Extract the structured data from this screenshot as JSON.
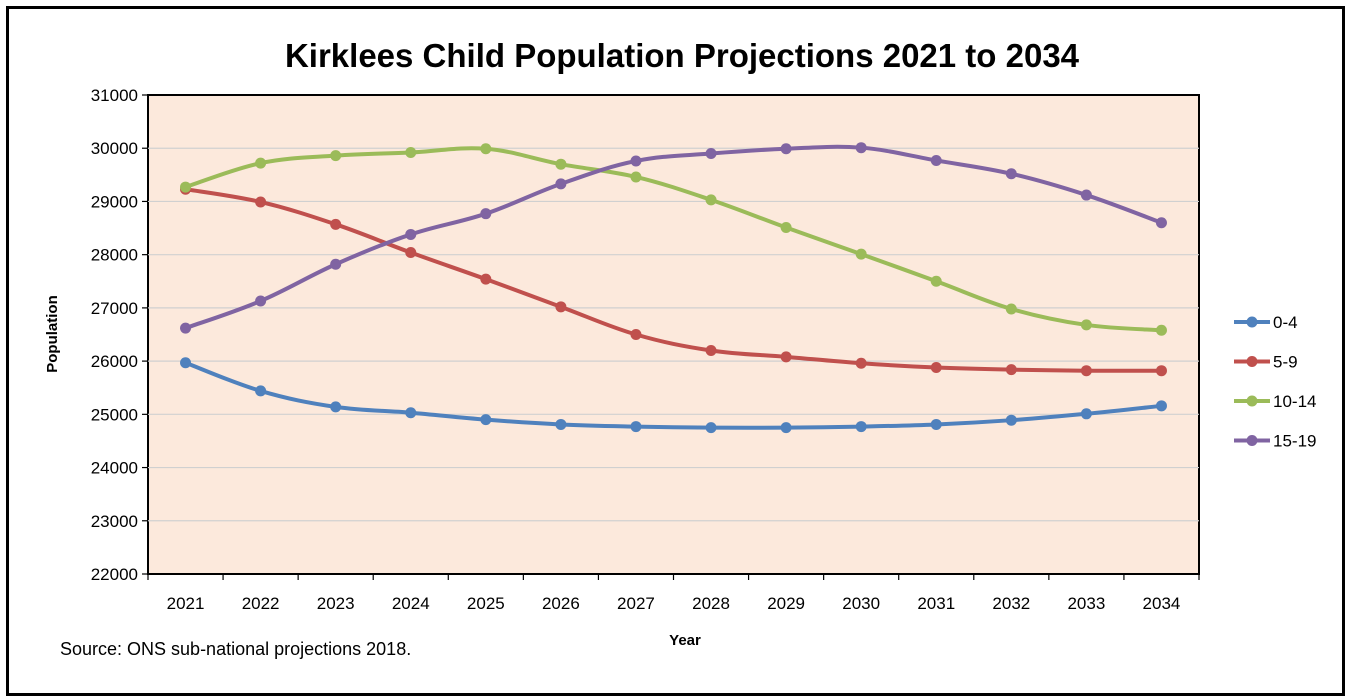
{
  "chart_data": {
    "type": "line",
    "title": "Kirklees Child Population Projections 2021 to 2034",
    "xlabel": "Year",
    "ylabel": "Population",
    "ylim": [
      22000,
      31000
    ],
    "yticks": [
      "22000",
      "23000",
      "24000",
      "25000",
      "26000",
      "27000",
      "28000",
      "29000",
      "30000",
      "31000"
    ],
    "categories": [
      "2021",
      "2022",
      "2023",
      "2024",
      "2025",
      "2026",
      "2027",
      "2028",
      "2029",
      "2030",
      "2031",
      "2032",
      "2033",
      "2034"
    ],
    "grid": true,
    "legend_position": "right",
    "plot_background": "#fce9dc",
    "series": [
      {
        "name": "0-4",
        "color": "#4f81bd",
        "values": [
          25970,
          25440,
          25140,
          25030,
          24900,
          24810,
          24770,
          24750,
          24750,
          24770,
          24810,
          24890,
          25010,
          25160
        ]
      },
      {
        "name": "5-9",
        "color": "#c0504d",
        "values": [
          29230,
          28990,
          28570,
          28040,
          27540,
          27020,
          26500,
          26200,
          26080,
          25960,
          25880,
          25840,
          25820,
          25820
        ]
      },
      {
        "name": "10-14",
        "color": "#9bbb59",
        "values": [
          29270,
          29720,
          29860,
          29920,
          29990,
          29700,
          29460,
          29030,
          28510,
          28010,
          27500,
          26980,
          26680,
          26580
        ]
      },
      {
        "name": "15-19",
        "color": "#8064a2",
        "values": [
          26620,
          27130,
          27820,
          28380,
          28770,
          29330,
          29760,
          29900,
          29990,
          30010,
          29770,
          29520,
          29120,
          28600
        ]
      }
    ]
  },
  "source_note": "Source: ONS sub-national projections 2018."
}
